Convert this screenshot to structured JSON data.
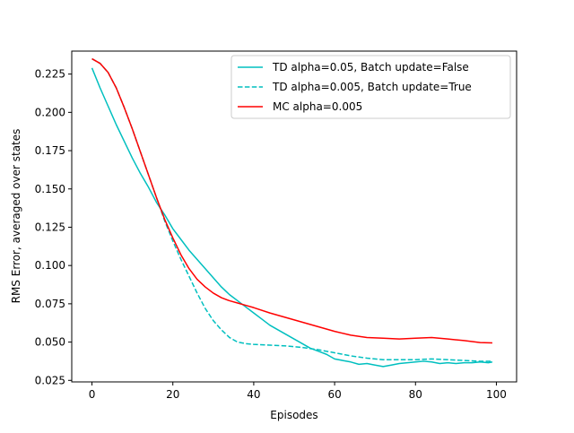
{
  "chart_data": {
    "type": "line",
    "title": "",
    "xlabel": "Episodes",
    "ylabel": "RMS Error, averaged over states",
    "xlim": [
      -5.0,
      105.0
    ],
    "ylim": [
      0.024,
      0.24
    ],
    "x_ticks": [
      0,
      20,
      40,
      60,
      80,
      100
    ],
    "x_tick_labels": [
      "0",
      "20",
      "40",
      "60",
      "80",
      "100"
    ],
    "y_ticks": [
      0.025,
      0.05,
      0.075,
      0.1,
      0.125,
      0.15,
      0.175,
      0.2,
      0.225
    ],
    "y_tick_labels": [
      "0.025",
      "0.050",
      "0.075",
      "0.100",
      "0.125",
      "0.150",
      "0.175",
      "0.200",
      "0.225"
    ],
    "grid": false,
    "legend_position": "top-right",
    "series": [
      {
        "name": "TD alpha=0.05, Batch update=False",
        "color": "#00bfbf",
        "dash": "solid",
        "x": [
          0,
          2,
          4,
          6,
          8,
          10,
          12,
          14,
          16,
          18,
          20,
          22,
          24,
          26,
          28,
          30,
          32,
          34,
          36,
          38,
          40,
          42,
          44,
          46,
          48,
          50,
          52,
          54,
          56,
          58,
          60,
          62,
          64,
          66,
          68,
          70,
          72,
          74,
          76,
          78,
          80,
          82,
          84,
          86,
          88,
          90,
          92,
          94,
          96,
          98,
          99
        ],
        "values": [
          0.229,
          0.216,
          0.204,
          0.192,
          0.181,
          0.17,
          0.16,
          0.151,
          0.141,
          0.133,
          0.124,
          0.117,
          0.11,
          0.104,
          0.098,
          0.092,
          0.086,
          0.081,
          0.077,
          0.073,
          0.069,
          0.065,
          0.061,
          0.058,
          0.055,
          0.052,
          0.049,
          0.046,
          0.044,
          0.042,
          0.039,
          0.038,
          0.037,
          0.0355,
          0.036,
          0.035,
          0.034,
          0.035,
          0.036,
          0.0365,
          0.037,
          0.0375,
          0.037,
          0.036,
          0.0365,
          0.036,
          0.0365,
          0.0365,
          0.037,
          0.0365,
          0.037
        ]
      },
      {
        "name": "TD alpha=0.005, Batch update=True",
        "color": "#00bfbf",
        "dash": "dashed",
        "x": [
          0,
          2,
          4,
          6,
          8,
          10,
          12,
          14,
          16,
          18,
          20,
          22,
          24,
          26,
          28,
          30,
          32,
          34,
          36,
          38,
          40,
          44,
          48,
          52,
          56,
          60,
          64,
          68,
          72,
          76,
          80,
          84,
          88,
          92,
          96,
          99
        ],
        "values": [
          0.235,
          0.232,
          0.226,
          0.216,
          0.203,
          0.189,
          0.174,
          0.159,
          0.144,
          0.129,
          0.116,
          0.104,
          0.093,
          0.082,
          0.072,
          0.064,
          0.058,
          0.053,
          0.05,
          0.049,
          0.0485,
          0.048,
          0.0475,
          0.0465,
          0.045,
          0.043,
          0.041,
          0.0395,
          0.0385,
          0.0385,
          0.0385,
          0.039,
          0.0385,
          0.038,
          0.0375,
          0.0375
        ]
      },
      {
        "name": "MC alpha=0.005",
        "color": "#ff0000",
        "dash": "solid",
        "x": [
          0,
          2,
          4,
          6,
          8,
          10,
          12,
          14,
          16,
          18,
          20,
          22,
          24,
          26,
          28,
          30,
          32,
          34,
          36,
          38,
          40,
          44,
          48,
          52,
          56,
          60,
          64,
          68,
          72,
          76,
          80,
          84,
          88,
          92,
          96,
          99
        ],
        "values": [
          0.235,
          0.232,
          0.226,
          0.216,
          0.203,
          0.189,
          0.174,
          0.159,
          0.144,
          0.13,
          0.118,
          0.107,
          0.098,
          0.091,
          0.086,
          0.082,
          0.079,
          0.077,
          0.0755,
          0.074,
          0.0725,
          0.069,
          0.066,
          0.063,
          0.06,
          0.057,
          0.0545,
          0.053,
          0.0525,
          0.052,
          0.0525,
          0.053,
          0.052,
          0.051,
          0.0497,
          0.0495
        ]
      }
    ]
  }
}
